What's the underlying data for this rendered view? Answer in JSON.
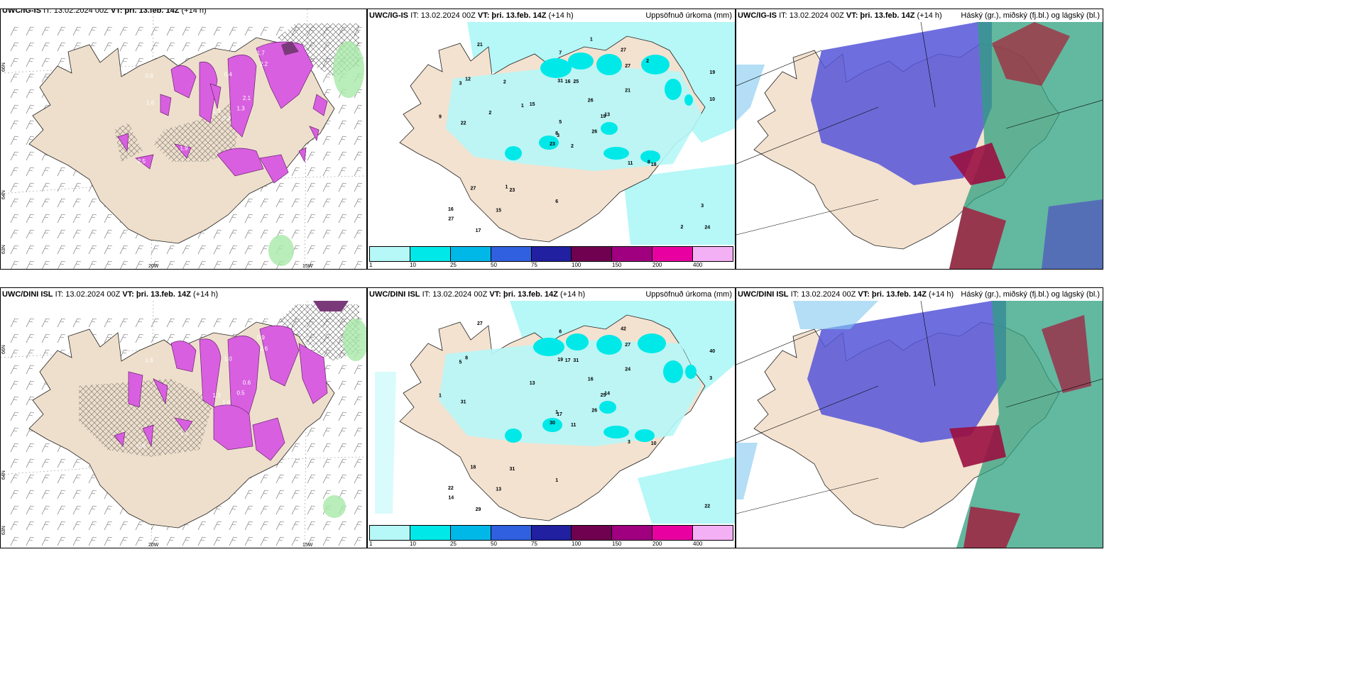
{
  "panels": [
    {
      "model": "UWC/IG-IS",
      "it": "IT: 13.02.2024 00Z",
      "vt": "VT: þri. 13.feb. 14Z",
      "lead": "(+14 h)",
      "right": ""
    },
    {
      "model": "UWC/IG-IS",
      "it": "IT: 13.02.2024 00Z",
      "vt": "VT: þri. 13.feb. 14Z",
      "lead": "(+14 h)",
      "right": "Uppsöfnuð úrkoma (mm)"
    },
    {
      "model": "UWC/IG-IS",
      "it": "IT: 13.02.2024 00Z",
      "vt": "VT: þri. 13.feb. 14Z",
      "lead": "(+14 h)",
      "right": "Háský (gr.), miðský (fj.bl.) og lágský (bl.)"
    },
    {
      "model": "UWC/DINI ISL",
      "it": "IT: 13.02.2024 00Z",
      "vt": "VT: þri. 13.feb. 14Z",
      "lead": "(+14 h)",
      "right": ""
    },
    {
      "model": "UWC/DINI ISL",
      "it": "IT: 13.02.2024 00Z",
      "vt": "VT: þri. 13.feb. 14Z",
      "lead": "(+14 h)",
      "right": "Uppsöfnuð úrkoma (mm)"
    },
    {
      "model": "UWC/DINI ISL",
      "it": "IT: 13.02.2024 00Z",
      "vt": "VT: þri. 13.feb. 14Z",
      "lead": "(+14 h)",
      "right": "Háský (gr.), miðský (fj.bl.) og lágský (bl.)"
    }
  ],
  "axes": {
    "lat66": "66N",
    "lat64": "64N",
    "lat63": "63N",
    "lon20": "20W",
    "lon15": "15W"
  },
  "colorbar": {
    "ticks": [
      "1",
      "10",
      "25",
      "50",
      "75",
      "100",
      "150",
      "200",
      "400"
    ],
    "colors": [
      "#b6f7f7",
      "#00e8e8",
      "#00b8e8",
      "#3060e0",
      "#2020a0",
      "#700050",
      "#a00080",
      "#e800a0",
      "#f4b0f4"
    ]
  },
  "precip_top": [
    {
      "v": "2"
    },
    {
      "v": "3"
    },
    {
      "v": "3"
    },
    {
      "v": "16"
    },
    {
      "v": "19"
    },
    {
      "v": "23"
    },
    {
      "v": "27"
    },
    {
      "v": "25"
    },
    {
      "v": "27"
    },
    {
      "v": "26"
    },
    {
      "v": "21"
    },
    {
      "v": "24"
    },
    {
      "v": "22"
    },
    {
      "v": "19"
    },
    {
      "v": "23"
    },
    {
      "v": "21"
    },
    {
      "v": "17"
    },
    {
      "v": "31"
    },
    {
      "v": "26"
    },
    {
      "v": "27"
    },
    {
      "v": "15"
    },
    {
      "v": "27"
    },
    {
      "v": "15"
    },
    {
      "v": "16"
    },
    {
      "v": "13"
    },
    {
      "v": "18"
    },
    {
      "v": "12"
    },
    {
      "v": "7"
    },
    {
      "v": "9"
    },
    {
      "v": "11"
    },
    {
      "v": "10"
    },
    {
      "v": "8"
    },
    {
      "v": "6"
    },
    {
      "v": "5"
    },
    {
      "v": "2"
    },
    {
      "v": "2"
    },
    {
      "v": "1"
    },
    {
      "v": "2"
    },
    {
      "v": "3"
    },
    {
      "v": "8"
    },
    {
      "v": "1"
    },
    {
      "v": "1"
    },
    {
      "v": "2"
    }
  ],
  "precip_bottom": [
    {
      "v": "11"
    },
    {
      "v": "5"
    },
    {
      "v": "17"
    },
    {
      "v": "22"
    },
    {
      "v": "25"
    },
    {
      "v": "31"
    },
    {
      "v": "42"
    },
    {
      "v": "31"
    },
    {
      "v": "27"
    },
    {
      "v": "26"
    },
    {
      "v": "27"
    },
    {
      "v": "22"
    },
    {
      "v": "31"
    },
    {
      "v": "40"
    },
    {
      "v": "30"
    },
    {
      "v": "24"
    },
    {
      "v": "29"
    },
    {
      "v": "19"
    },
    {
      "v": "16"
    },
    {
      "v": "18"
    },
    {
      "v": "13"
    },
    {
      "v": "14"
    },
    {
      "v": "13"
    },
    {
      "v": "17"
    },
    {
      "v": "14"
    },
    {
      "v": "10"
    },
    {
      "v": "8"
    },
    {
      "v": "6"
    },
    {
      "v": "1"
    },
    {
      "v": "3"
    },
    {
      "v": "3"
    },
    {
      "v": "1"
    },
    {
      "v": "1"
    }
  ],
  "snow_top": [
    "0.3",
    "0.9",
    "1.3",
    "2.5",
    "2.1",
    "1.9",
    "1.7",
    "0.4",
    "2.2",
    "1.3",
    "0.3",
    "0.5",
    "1.6"
  ],
  "snow_bottom": [
    "1.0",
    "1.6",
    "1.3",
    "0.8",
    "0.6",
    "1.2",
    "0.9",
    "1.0",
    "1.6",
    "0.5",
    "0.8",
    "0.3"
  ]
}
